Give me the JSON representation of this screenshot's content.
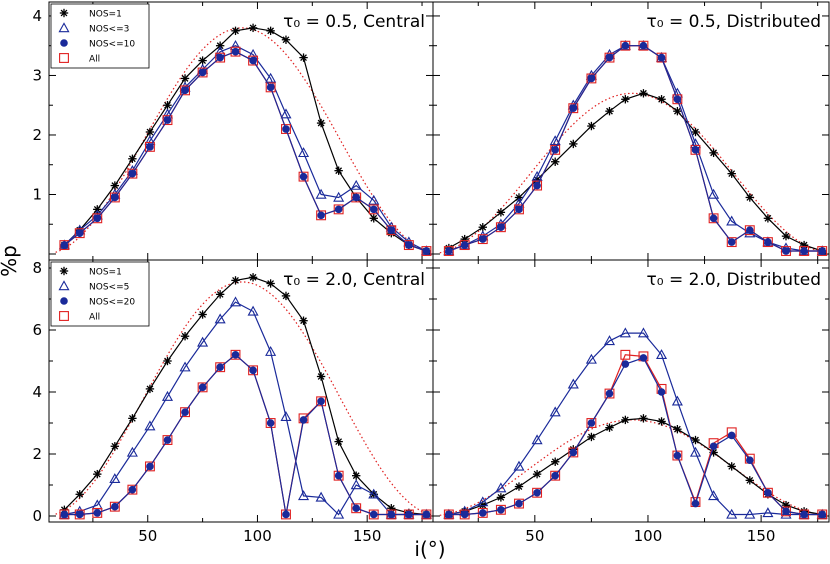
{
  "figure": {
    "ylabel": "%p",
    "xlabel": "i(°)"
  },
  "chart_data": [
    {
      "type": "line",
      "title": "τ₀ = 0.5, Central",
      "xlim": [
        5,
        180
      ],
      "ylim": [
        0,
        4.1
      ],
      "yticks": [
        "1",
        "2",
        "3",
        "4"
      ],
      "xticks": [
        "50",
        "100",
        "150"
      ],
      "legend": {
        "position": "top-left",
        "entries": [
          "NOS=1",
          "NOS<=3",
          "NOS<=10",
          "All"
        ]
      },
      "x": [
        12,
        19,
        27,
        35,
        43,
        51,
        59,
        67,
        75,
        83,
        90,
        98,
        106,
        113,
        121,
        129,
        137,
        145,
        153,
        161,
        169,
        177
      ],
      "series": [
        {
          "name": "NOS=1",
          "marker": "asterisk",
          "color": "#000000",
          "values": [
            0.15,
            0.4,
            0.75,
            1.15,
            1.6,
            2.05,
            2.5,
            2.95,
            3.25,
            3.5,
            3.75,
            3.8,
            3.75,
            3.6,
            3.3,
            2.2,
            1.4,
            0.95,
            0.6,
            0.35,
            0.15,
            0.05
          ]
        },
        {
          "name": "NOS<=3",
          "marker": "triangle",
          "color": "#1a2a9a",
          "values": [
            0.15,
            0.4,
            0.65,
            1.0,
            1.4,
            1.9,
            2.35,
            2.8,
            3.1,
            3.4,
            3.5,
            3.35,
            2.95,
            2.35,
            1.7,
            1.0,
            0.95,
            1.15,
            0.9,
            0.45,
            0.2,
            0.05
          ]
        },
        {
          "name": "NOS<=10",
          "marker": "dot",
          "color": "#1a2a9a",
          "values": [
            0.15,
            0.35,
            0.6,
            0.95,
            1.35,
            1.8,
            2.25,
            2.75,
            3.05,
            3.3,
            3.4,
            3.25,
            2.8,
            2.1,
            1.3,
            0.65,
            0.75,
            0.95,
            0.75,
            0.4,
            0.15,
            0.05
          ]
        },
        {
          "name": "All",
          "marker": "square",
          "color": "#e02020",
          "values": [
            0.15,
            0.35,
            0.6,
            0.95,
            1.35,
            1.8,
            2.25,
            2.75,
            3.05,
            3.3,
            3.4,
            3.25,
            2.8,
            2.1,
            1.3,
            0.65,
            0.75,
            0.95,
            0.75,
            0.4,
            0.15,
            0.05
          ]
        }
      ],
      "fit": {
        "style": "dotted",
        "color": "#e02020",
        "peak": 3.8,
        "center": 93
      }
    },
    {
      "type": "line",
      "title": "τ₀ = 0.5, Distributed",
      "xlim": [
        5,
        180
      ],
      "ylim": [
        0,
        4.1
      ],
      "yticks": [],
      "xticks": [
        "50",
        "100",
        "150"
      ],
      "x": [
        12,
        19,
        27,
        35,
        43,
        51,
        59,
        67,
        75,
        83,
        90,
        98,
        106,
        113,
        121,
        129,
        137,
        145,
        153,
        161,
        169,
        177
      ],
      "series": [
        {
          "name": "NOS=1",
          "marker": "asterisk",
          "color": "#000000",
          "values": [
            0.1,
            0.25,
            0.45,
            0.7,
            0.95,
            1.25,
            1.55,
            1.85,
            2.15,
            2.4,
            2.6,
            2.7,
            2.6,
            2.4,
            2.05,
            1.7,
            1.35,
            0.95,
            0.6,
            0.3,
            0.15,
            0.05
          ]
        },
        {
          "name": "NOS<=3",
          "marker": "triangle",
          "color": "#1a2a9a",
          "values": [
            0.05,
            0.15,
            0.3,
            0.5,
            0.85,
            1.3,
            1.9,
            2.5,
            3.0,
            3.35,
            3.5,
            3.5,
            3.3,
            2.7,
            1.85,
            1.0,
            0.55,
            0.35,
            0.2,
            0.1,
            0.05,
            0.05
          ]
        },
        {
          "name": "NOS<=10",
          "marker": "dot",
          "color": "#1a2a9a",
          "values": [
            0.05,
            0.15,
            0.25,
            0.45,
            0.75,
            1.15,
            1.75,
            2.45,
            2.95,
            3.3,
            3.5,
            3.5,
            3.3,
            2.6,
            1.75,
            0.6,
            0.2,
            0.4,
            0.2,
            0.05,
            0.05,
            0.05
          ]
        },
        {
          "name": "All",
          "marker": "square",
          "color": "#e02020",
          "values": [
            0.05,
            0.15,
            0.25,
            0.45,
            0.75,
            1.15,
            1.75,
            2.45,
            2.95,
            3.3,
            3.5,
            3.5,
            3.3,
            2.6,
            1.75,
            0.6,
            0.2,
            0.4,
            0.2,
            0.05,
            0.05,
            0.05
          ]
        }
      ],
      "fit": {
        "style": "dotted",
        "color": "#e02020",
        "peak": 2.7,
        "center": 93
      }
    },
    {
      "type": "line",
      "title": "τ₀ = 2.0, Central",
      "xlim": [
        5,
        180
      ],
      "ylim": [
        0,
        8
      ],
      "yticks": [
        "0",
        "2",
        "4",
        "6",
        "8"
      ],
      "xticks": [
        "50",
        "100",
        "150"
      ],
      "legend": {
        "position": "top-left",
        "entries": [
          "NOS=1",
          "NOS<=5",
          "NOS<=20",
          "All"
        ]
      },
      "x": [
        12,
        19,
        27,
        35,
        43,
        51,
        59,
        67,
        75,
        83,
        90,
        98,
        106,
        113,
        121,
        129,
        137,
        145,
        153,
        161,
        169,
        177
      ],
      "series": [
        {
          "name": "NOS=1",
          "marker": "asterisk",
          "color": "#000000",
          "values": [
            0.2,
            0.7,
            1.35,
            2.25,
            3.15,
            4.1,
            5.0,
            5.8,
            6.5,
            7.15,
            7.6,
            7.7,
            7.5,
            7.1,
            6.3,
            4.5,
            2.4,
            1.3,
            0.7,
            0.25,
            0.1,
            0.05
          ]
        },
        {
          "name": "NOS<=5",
          "marker": "triangle",
          "color": "#1a2a9a",
          "values": [
            0.05,
            0.15,
            0.35,
            1.2,
            2.05,
            2.9,
            3.85,
            4.8,
            5.6,
            6.35,
            6.9,
            6.6,
            5.3,
            3.2,
            0.65,
            0.6,
            0.05,
            1.0,
            0.7,
            0.05,
            0.05,
            0.05
          ]
        },
        {
          "name": "NOS<=20",
          "marker": "dot",
          "color": "#1a2a9a",
          "values": [
            0.05,
            0.05,
            0.1,
            0.3,
            0.85,
            1.6,
            2.45,
            3.35,
            4.15,
            4.8,
            5.2,
            4.7,
            3.0,
            0.05,
            3.1,
            3.7,
            1.3,
            0.25,
            0.05,
            0.05,
            0.05,
            0.05
          ]
        },
        {
          "name": "All",
          "marker": "square",
          "color": "#e02020",
          "values": [
            0.05,
            0.05,
            0.1,
            0.3,
            0.85,
            1.6,
            2.45,
            3.35,
            4.15,
            4.8,
            5.2,
            4.7,
            3.0,
            0.05,
            3.15,
            3.7,
            1.3,
            0.25,
            0.05,
            0.05,
            0.05,
            0.05
          ]
        }
      ],
      "fit": {
        "style": "dotted",
        "color": "#e02020",
        "peak": 7.55,
        "center": 93
      }
    },
    {
      "type": "line",
      "title": "τ₀ = 2.0, Distributed",
      "xlim": [
        5,
        180
      ],
      "ylim": [
        0,
        8
      ],
      "yticks": [],
      "xticks": [
        "50",
        "100",
        "150"
      ],
      "x": [
        12,
        19,
        27,
        35,
        43,
        51,
        59,
        67,
        75,
        83,
        90,
        98,
        106,
        113,
        121,
        129,
        137,
        145,
        153,
        161,
        169,
        177
      ],
      "series": [
        {
          "name": "NOS=1",
          "marker": "asterisk",
          "color": "#000000",
          "values": [
            0.05,
            0.15,
            0.35,
            0.6,
            0.95,
            1.35,
            1.75,
            2.15,
            2.55,
            2.85,
            3.1,
            3.15,
            3.05,
            2.8,
            2.45,
            2.05,
            1.6,
            1.15,
            0.7,
            0.35,
            0.15,
            0.05
          ]
        },
        {
          "name": "NOS<=5",
          "marker": "triangle",
          "color": "#1a2a9a",
          "values": [
            0.05,
            0.15,
            0.45,
            0.9,
            1.6,
            2.45,
            3.35,
            4.25,
            5.05,
            5.65,
            5.9,
            5.9,
            5.2,
            3.7,
            2.05,
            0.65,
            0.05,
            0.05,
            0.1,
            0.05,
            0.05,
            0.05
          ]
        },
        {
          "name": "NOS<=20",
          "marker": "dot",
          "color": "#1a2a9a",
          "values": [
            0.05,
            0.05,
            0.1,
            0.2,
            0.4,
            0.75,
            1.3,
            2.05,
            3.0,
            3.95,
            4.9,
            5.1,
            4.0,
            1.95,
            0.4,
            2.25,
            2.6,
            1.8,
            0.75,
            0.15,
            0.05,
            0.05
          ]
        },
        {
          "name": "All",
          "marker": "square",
          "color": "#e02020",
          "values": [
            0.05,
            0.05,
            0.1,
            0.2,
            0.4,
            0.75,
            1.3,
            2.05,
            3.0,
            3.95,
            5.2,
            5.15,
            4.1,
            1.95,
            0.45,
            2.35,
            2.7,
            1.85,
            0.75,
            0.15,
            0.05,
            0.05
          ]
        }
      ],
      "fit": {
        "style": "dotted",
        "color": "#e02020",
        "peak": 3.1,
        "center": 93
      }
    }
  ]
}
